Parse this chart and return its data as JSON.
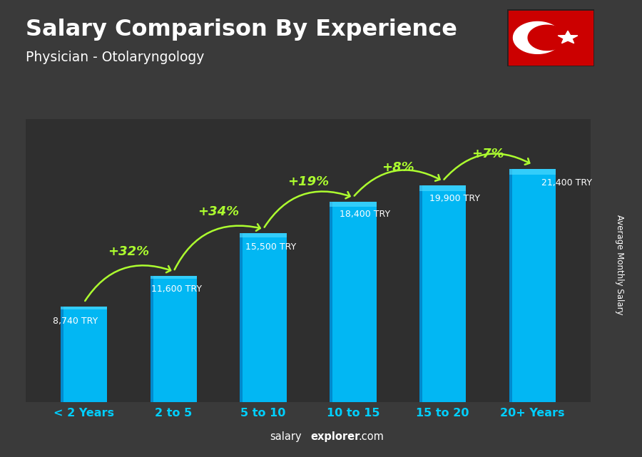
{
  "title": "Salary Comparison By Experience",
  "subtitle": "Physician - Otolaryngology",
  "categories": [
    "< 2 Years",
    "2 to 5",
    "5 to 10",
    "10 to 15",
    "15 to 20",
    "20+ Years"
  ],
  "values": [
    8740,
    11600,
    15500,
    18400,
    19900,
    21400
  ],
  "labels": [
    "8,740 TRY",
    "11,600 TRY",
    "15,500 TRY",
    "18,400 TRY",
    "19,900 TRY",
    "21,400 TRY"
  ],
  "pct_changes": [
    "+32%",
    "+34%",
    "+19%",
    "+8%",
    "+7%"
  ],
  "bar_color_main": "#00BFFF",
  "bar_color_left": "#0088CC",
  "bar_color_top": "#55DDFF",
  "bg_color": "#3a3a3a",
  "title_color": "#FFFFFF",
  "subtitle_color": "#FFFFFF",
  "label_color": "#FFFFFF",
  "pct_color": "#ADFF2F",
  "cat_color": "#00CFFF",
  "footer_salary_color": "#FFFFFF",
  "footer_explorer_color": "#FFFFFF",
  "ylabel_text": "Average Monthly Salary",
  "footer_salary": "salary",
  "footer_explorer": "explorer",
  "footer_dot_com": ".com",
  "flag_bg": "#CC0000",
  "ylim_max": 26000,
  "ylim_min": 0
}
